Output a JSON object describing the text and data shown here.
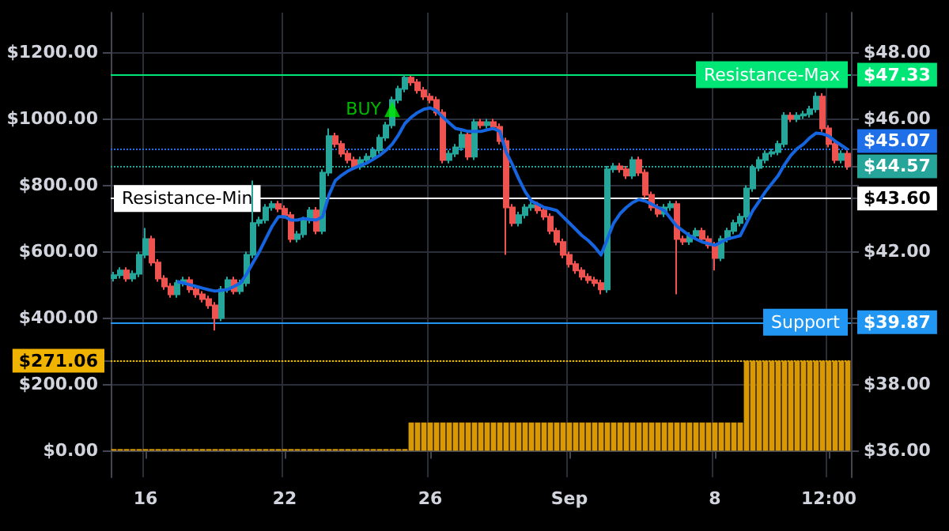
{
  "chart_data": {
    "type": "candlestick",
    "grid": true,
    "categories": [
      null,
      null,
      null,
      null,
      null,
      "16",
      null,
      null,
      null,
      null,
      null,
      null,
      null,
      null,
      null,
      null,
      null,
      null,
      null,
      null,
      null,
      null,
      null,
      null,
      null,
      null,
      null,
      "22",
      null,
      null,
      null,
      null,
      null,
      null,
      null,
      null,
      null,
      null,
      null,
      null,
      null,
      null,
      null,
      null,
      null,
      null,
      null,
      null,
      null,
      null,
      "26",
      null,
      null,
      null,
      null,
      null,
      null,
      null,
      null,
      null,
      null,
      null,
      null,
      null,
      null,
      null,
      null,
      null,
      null,
      null,
      null,
      null,
      "Sep",
      null,
      null,
      null,
      null,
      null,
      null,
      null,
      null,
      null,
      null,
      null,
      null,
      null,
      null,
      null,
      null,
      null,
      null,
      null,
      null,
      null,
      null,
      "8",
      null,
      null,
      null,
      null,
      null,
      null,
      null,
      null,
      null,
      null,
      null,
      null,
      null,
      null,
      null,
      null,
      null,
      "12:00",
      null,
      null,
      null
    ],
    "ylim": [
      -80,
      1320
    ],
    "yticks": [
      {
        "value": 0,
        "label": "$0.00"
      },
      {
        "value": 200,
        "label": "$200.00"
      },
      {
        "value": 271.06,
        "label": "$271.06"
      },
      {
        "value": 400,
        "label": "$400.00"
      },
      {
        "value": 600,
        "label": "$600.00"
      },
      {
        "value": 800,
        "label": "$800.00"
      },
      {
        "value": 1000,
        "label": "$1000.00"
      },
      {
        "value": 1200,
        "label": "$1200.00"
      }
    ],
    "y2lim": [
      35.2,
      49.2
    ],
    "y2ticks": [
      {
        "value": 36,
        "label": "$36.00"
      },
      {
        "value": 38,
        "label": "$38.00"
      },
      {
        "value": 39.87,
        "label": "$39.87"
      },
      {
        "value": 40,
        "label": null
      },
      {
        "value": 42,
        "label": "$42.00"
      },
      {
        "value": 43.6,
        "label": "$43.60"
      },
      {
        "value": 44,
        "label": null
      },
      {
        "value": 44.57,
        "label": "$44.57"
      },
      {
        "value": 45.07,
        "label": "$45.07"
      },
      {
        "value": 46,
        "label": "$46.00"
      },
      {
        "value": 47.33,
        "label": "$47.33"
      },
      {
        "value": 48,
        "label": "$48.00"
      }
    ],
    "ref_lines": [
      {
        "axis": "y2",
        "value": 47.33,
        "label": "Resistance-Max",
        "color": "#00e676",
        "line_style": "solid"
      },
      {
        "axis": "y2",
        "value": 45.07,
        "label": null,
        "color": "#1e6fe8",
        "line_style": "dotted"
      },
      {
        "axis": "y2",
        "value": 44.57,
        "label": null,
        "color": "#26a69a",
        "line_style": "dotted"
      },
      {
        "axis": "y2",
        "value": 43.6,
        "label": "Resistance-Min",
        "color": "#ffffff",
        "line_style": "solid"
      },
      {
        "axis": "y2",
        "value": 39.87,
        "label": "Support",
        "color": "#2196f3",
        "line_style": "solid"
      },
      {
        "axis": "y",
        "value": 271.06,
        "label": null,
        "color": "#f0b400",
        "line_style": "dotted"
      }
    ],
    "series": [
      {
        "type": "bar",
        "color": "#d89a00",
        "values": [
          5,
          5,
          5,
          5,
          5,
          5,
          5,
          5,
          5,
          5,
          5,
          5,
          5,
          5,
          5,
          5,
          5,
          5,
          5,
          5,
          5,
          5,
          5,
          5,
          5,
          5,
          5,
          5,
          5,
          5,
          5,
          5,
          5,
          5,
          5,
          5,
          5,
          5,
          5,
          5,
          5,
          5,
          5,
          5,
          5,
          5,
          5,
          85,
          85,
          85,
          85,
          85,
          85,
          85,
          85,
          85,
          85,
          85,
          85,
          85,
          85,
          85,
          85,
          85,
          85,
          85,
          85,
          85,
          85,
          85,
          85,
          85,
          85,
          85,
          85,
          85,
          85,
          85,
          85,
          85,
          85,
          85,
          85,
          85,
          85,
          85,
          85,
          85,
          85,
          85,
          85,
          85,
          85,
          85,
          85,
          85,
          85,
          85,
          85,
          85,
          271.06,
          271.06,
          271.06,
          271.06,
          271.06,
          271.06,
          271.06,
          271.06,
          271.06,
          271.06,
          271.06,
          271.06,
          271.06,
          271.06,
          271.06,
          271.06,
          271.06
        ]
      },
      {
        "axis": "y2",
        "ohlc": [
          [
            41.2,
            41.39,
            41.1,
            41.29
          ],
          [
            41.29,
            41.53,
            41.19,
            41.43
          ],
          [
            41.43,
            41.53,
            41.09,
            41.19
          ],
          [
            41.19,
            41.43,
            41.09,
            41.33
          ],
          [
            41.33,
            42.0,
            41.23,
            41.9
          ],
          [
            41.9,
            42.71,
            41.8,
            42.38
          ],
          [
            42.38,
            42.48,
            41.57,
            41.67
          ],
          [
            41.67,
            41.77,
            41.09,
            41.19
          ],
          [
            41.19,
            41.29,
            40.85,
            40.95
          ],
          [
            40.95,
            41.05,
            40.61,
            40.71
          ],
          [
            40.71,
            41.15,
            40.61,
            41.05
          ],
          [
            41.05,
            41.24,
            40.95,
            41.14
          ],
          [
            41.14,
            41.24,
            40.76,
            40.86
          ],
          [
            40.86,
            40.96,
            40.61,
            40.71
          ],
          [
            40.71,
            40.81,
            40.47,
            40.57
          ],
          [
            40.57,
            40.67,
            40.28,
            40.38
          ],
          [
            40.38,
            40.48,
            39.62,
            40.0
          ],
          [
            40.0,
            40.96,
            39.9,
            40.86
          ],
          [
            40.86,
            41.24,
            40.76,
            41.14
          ],
          [
            41.14,
            41.24,
            40.71,
            40.81
          ],
          [
            40.81,
            41.15,
            40.71,
            41.05
          ],
          [
            41.05,
            42.0,
            40.95,
            41.9
          ],
          [
            41.9,
            44.14,
            41.8,
            42.86
          ],
          [
            42.86,
            43.05,
            42.76,
            42.95
          ],
          [
            42.95,
            43.43,
            42.85,
            43.33
          ],
          [
            43.33,
            43.53,
            43.23,
            43.43
          ],
          [
            43.43,
            43.53,
            43.19,
            43.29
          ],
          [
            43.29,
            43.39,
            43.0,
            43.1
          ],
          [
            43.1,
            43.2,
            42.28,
            42.38
          ],
          [
            42.38,
            42.62,
            42.28,
            42.52
          ],
          [
            42.52,
            43.05,
            42.42,
            42.95
          ],
          [
            42.95,
            43.34,
            42.85,
            43.24
          ],
          [
            43.24,
            43.34,
            42.52,
            42.62
          ],
          [
            42.62,
            44.48,
            42.52,
            44.38
          ],
          [
            44.38,
            45.71,
            44.28,
            45.48
          ],
          [
            45.48,
            45.58,
            45.14,
            45.24
          ],
          [
            45.24,
            45.34,
            44.85,
            44.95
          ],
          [
            44.95,
            45.05,
            44.66,
            44.76
          ],
          [
            44.76,
            44.86,
            44.47,
            44.57
          ],
          [
            44.57,
            44.86,
            44.47,
            44.76
          ],
          [
            44.76,
            44.96,
            44.66,
            44.86
          ],
          [
            44.86,
            45.15,
            44.76,
            45.05
          ],
          [
            45.05,
            45.53,
            44.95,
            45.43
          ],
          [
            45.43,
            45.91,
            45.33,
            45.81
          ],
          [
            45.81,
            46.67,
            45.71,
            46.57
          ],
          [
            46.57,
            47.0,
            46.47,
            46.9
          ],
          [
            46.9,
            47.33,
            46.8,
            47.24
          ],
          [
            47.24,
            47.3,
            47.0,
            47.1
          ],
          [
            47.1,
            47.2,
            46.76,
            46.86
          ],
          [
            46.86,
            46.96,
            46.57,
            46.67
          ],
          [
            46.67,
            46.77,
            46.47,
            46.57
          ],
          [
            46.57,
            46.67,
            46.09,
            46.19
          ],
          [
            46.19,
            46.29,
            44.66,
            44.76
          ],
          [
            44.76,
            45.05,
            44.66,
            44.95
          ],
          [
            44.95,
            45.24,
            44.85,
            45.14
          ],
          [
            45.14,
            45.62,
            45.04,
            45.52
          ],
          [
            45.52,
            45.62,
            44.76,
            44.86
          ],
          [
            44.86,
            46.0,
            44.76,
            45.9
          ],
          [
            45.9,
            46.0,
            45.71,
            45.81
          ],
          [
            45.81,
            46.0,
            45.71,
            45.9
          ],
          [
            45.9,
            46.0,
            45.66,
            45.76
          ],
          [
            45.76,
            45.86,
            45.23,
            45.33
          ],
          [
            45.33,
            45.43,
            41.9,
            43.33
          ],
          [
            43.33,
            43.43,
            42.76,
            42.86
          ],
          [
            42.86,
            43.2,
            42.76,
            43.1
          ],
          [
            43.1,
            43.43,
            43.0,
            43.33
          ],
          [
            43.33,
            43.5,
            43.23,
            43.4
          ],
          [
            43.4,
            43.5,
            43.14,
            43.24
          ],
          [
            43.24,
            43.34,
            42.95,
            43.05
          ],
          [
            43.05,
            43.15,
            42.52,
            42.62
          ],
          [
            42.62,
            42.72,
            42.19,
            42.29
          ],
          [
            42.29,
            42.39,
            41.8,
            41.9
          ],
          [
            41.9,
            42.0,
            41.52,
            41.62
          ],
          [
            41.62,
            41.72,
            41.33,
            41.43
          ],
          [
            41.43,
            41.53,
            41.14,
            41.24
          ],
          [
            41.24,
            41.34,
            41.04,
            41.14
          ],
          [
            41.14,
            41.24,
            40.95,
            41.05
          ],
          [
            41.05,
            41.15,
            40.71,
            40.86
          ],
          [
            40.86,
            44.58,
            40.76,
            44.48
          ],
          [
            44.48,
            44.67,
            44.38,
            44.57
          ],
          [
            44.57,
            44.67,
            44.38,
            44.48
          ],
          [
            44.48,
            44.58,
            44.19,
            44.29
          ],
          [
            44.29,
            44.86,
            44.19,
            44.76
          ],
          [
            44.76,
            44.86,
            44.28,
            44.38
          ],
          [
            44.38,
            44.48,
            43.61,
            43.71
          ],
          [
            43.71,
            43.81,
            43.23,
            43.33
          ],
          [
            43.33,
            43.43,
            43.04,
            43.14
          ],
          [
            43.14,
            43.43,
            43.04,
            43.33
          ],
          [
            43.33,
            43.53,
            43.23,
            43.43
          ],
          [
            43.43,
            43.53,
            40.71,
            42.38
          ],
          [
            42.38,
            42.48,
            42.2,
            42.3
          ],
          [
            42.3,
            42.58,
            42.2,
            42.48
          ],
          [
            42.48,
            42.72,
            42.38,
            42.62
          ],
          [
            42.62,
            42.72,
            42.28,
            42.38
          ],
          [
            42.38,
            42.48,
            42.09,
            42.19
          ],
          [
            42.19,
            42.29,
            41.43,
            41.81
          ],
          [
            41.81,
            42.48,
            41.71,
            42.38
          ],
          [
            42.38,
            42.72,
            42.28,
            42.62
          ],
          [
            42.62,
            42.96,
            42.52,
            42.86
          ],
          [
            42.86,
            43.15,
            42.76,
            43.05
          ],
          [
            43.05,
            44.0,
            42.95,
            43.9
          ],
          [
            43.9,
            44.62,
            43.8,
            44.52
          ],
          [
            44.52,
            44.86,
            44.42,
            44.76
          ],
          [
            44.76,
            45.05,
            44.66,
            44.95
          ],
          [
            44.95,
            45.1,
            44.85,
            45.0
          ],
          [
            45.0,
            45.34,
            44.9,
            45.24
          ],
          [
            45.24,
            46.2,
            45.14,
            46.1
          ],
          [
            46.1,
            46.2,
            45.9,
            46.0
          ],
          [
            46.0,
            46.2,
            45.9,
            46.1
          ],
          [
            46.1,
            46.24,
            46.0,
            46.14
          ],
          [
            46.14,
            46.39,
            46.04,
            46.29
          ],
          [
            46.29,
            46.81,
            46.19,
            46.67
          ],
          [
            46.67,
            46.77,
            45.61,
            45.71
          ],
          [
            45.71,
            45.81,
            45.14,
            45.24
          ],
          [
            45.24,
            45.34,
            44.66,
            44.76
          ],
          [
            44.76,
            45.05,
            44.66,
            44.95
          ],
          [
            44.95,
            45.05,
            44.47,
            44.57
          ]
        ],
        "colors": [
          "#26a69a",
          "#26a69a",
          "#ef5350",
          "#26a69a",
          "#26a69a",
          "#26a69a",
          "#ef5350",
          "#ef5350",
          "#ef5350",
          "#ef5350",
          "#26a69a",
          "#26a69a",
          "#ef5350",
          "#ef5350",
          "#ef5350",
          "#ef5350",
          "#ef5350",
          "#26a69a",
          "#26a69a",
          "#ef5350",
          "#26a69a",
          "#26a69a",
          "#26a69a",
          "#26a69a",
          "#26a69a",
          "#26a69a",
          "#ef5350",
          "#ef5350",
          "#ef5350",
          "#26a69a",
          "#26a69a",
          "#26a69a",
          "#ef5350",
          "#26a69a",
          "#26a69a",
          "#ef5350",
          "#ef5350",
          "#ef5350",
          "#ef5350",
          "#26a69a",
          "#26a69a",
          "#26a69a",
          "#26a69a",
          "#26a69a",
          "#26a69a",
          "#26a69a",
          "#26a69a",
          "#ef5350",
          "#ef5350",
          "#ef5350",
          "#ef5350",
          "#ef5350",
          "#ef5350",
          "#26a69a",
          "#26a69a",
          "#26a69a",
          "#ef5350",
          "#26a69a",
          "#ef5350",
          "#26a69a",
          "#ef5350",
          "#ef5350",
          "#ef5350",
          "#ef5350",
          "#26a69a",
          "#26a69a",
          "#26a69a",
          "#ef5350",
          "#ef5350",
          "#ef5350",
          "#ef5350",
          "#ef5350",
          "#ef5350",
          "#ef5350",
          "#ef5350",
          "#ef5350",
          "#ef5350",
          "#ef5350",
          "#26a69a",
          "#26a69a",
          "#ef5350",
          "#ef5350",
          "#26a69a",
          "#ef5350",
          "#ef5350",
          "#ef5350",
          "#ef5350",
          "#26a69a",
          "#26a69a",
          "#ef5350",
          "#ef5350",
          "#26a69a",
          "#26a69a",
          "#ef5350",
          "#ef5350",
          "#ef5350",
          "#26a69a",
          "#26a69a",
          "#26a69a",
          "#26a69a",
          "#26a69a",
          "#26a69a",
          "#26a69a",
          "#26a69a",
          "#26a69a",
          "#26a69a",
          "#26a69a",
          "#ef5350",
          "#26a69a",
          "#26a69a",
          "#26a69a",
          "#26a69a",
          "#ef5350",
          "#ef5350",
          "#ef5350",
          "#26a69a",
          "#ef5350"
        ]
      },
      {
        "type": "line",
        "axis": "y2",
        "color": "#1565e0",
        "values": [
          null,
          null,
          null,
          null,
          null,
          null,
          null,
          null,
          null,
          null,
          41.1,
          41.05,
          41.0,
          40.95,
          40.9,
          40.85,
          40.81,
          40.83,
          40.86,
          40.95,
          41.05,
          41.33,
          41.67,
          42.0,
          42.38,
          42.76,
          43.05,
          43.05,
          42.95,
          42.95,
          43.0,
          42.97,
          42.95,
          43.05,
          43.71,
          44.14,
          44.3,
          44.43,
          44.52,
          44.6,
          44.67,
          44.78,
          44.9,
          45.05,
          45.24,
          45.52,
          45.86,
          46.05,
          46.19,
          46.29,
          46.33,
          46.24,
          46.05,
          45.88,
          45.71,
          45.67,
          45.62,
          45.62,
          45.62,
          45.67,
          45.71,
          45.62,
          45.0,
          44.62,
          44.19,
          43.81,
          43.52,
          43.43,
          43.33,
          43.29,
          43.24,
          43.05,
          42.86,
          42.67,
          42.48,
          42.33,
          42.14,
          41.9,
          42.38,
          42.86,
          43.14,
          43.33,
          43.48,
          43.57,
          43.52,
          43.43,
          43.33,
          43.24,
          43.0,
          42.76,
          42.62,
          42.48,
          42.38,
          42.29,
          42.24,
          42.19,
          42.29,
          42.38,
          42.43,
          42.48,
          42.86,
          43.24,
          43.52,
          43.81,
          44.05,
          44.29,
          44.62,
          44.9,
          45.1,
          45.24,
          45.43,
          45.57,
          45.55,
          45.48,
          45.33,
          45.2,
          45.07
        ]
      },
      {
        "type": "scatter",
        "axis": "y2",
        "name": "BUY",
        "color": "#00e600",
        "marker": "triangle",
        "values": [
          null,
          null,
          null,
          null,
          null,
          null,
          null,
          null,
          null,
          null,
          null,
          null,
          null,
          null,
          null,
          null,
          null,
          null,
          null,
          null,
          null,
          null,
          null,
          null,
          null,
          null,
          null,
          null,
          null,
          null,
          null,
          null,
          null,
          null,
          null,
          null,
          null,
          null,
          null,
          null,
          null,
          null,
          null,
          null,
          46.29,
          null,
          null,
          null,
          null,
          null,
          null,
          null,
          null,
          null,
          null,
          null,
          null,
          null,
          null,
          null,
          null,
          null,
          null,
          null,
          null,
          null,
          null,
          null,
          null,
          null,
          null,
          null,
          null,
          null,
          null,
          null,
          null,
          null,
          null,
          null,
          null,
          null,
          null,
          null,
          null,
          null,
          null,
          null,
          null,
          null,
          null,
          null,
          null,
          null,
          null,
          null,
          null,
          null,
          null,
          null,
          null,
          null,
          null,
          null,
          null,
          null,
          null,
          null,
          null,
          null,
          null,
          null,
          null,
          null,
          null,
          null,
          null
        ]
      }
    ]
  }
}
